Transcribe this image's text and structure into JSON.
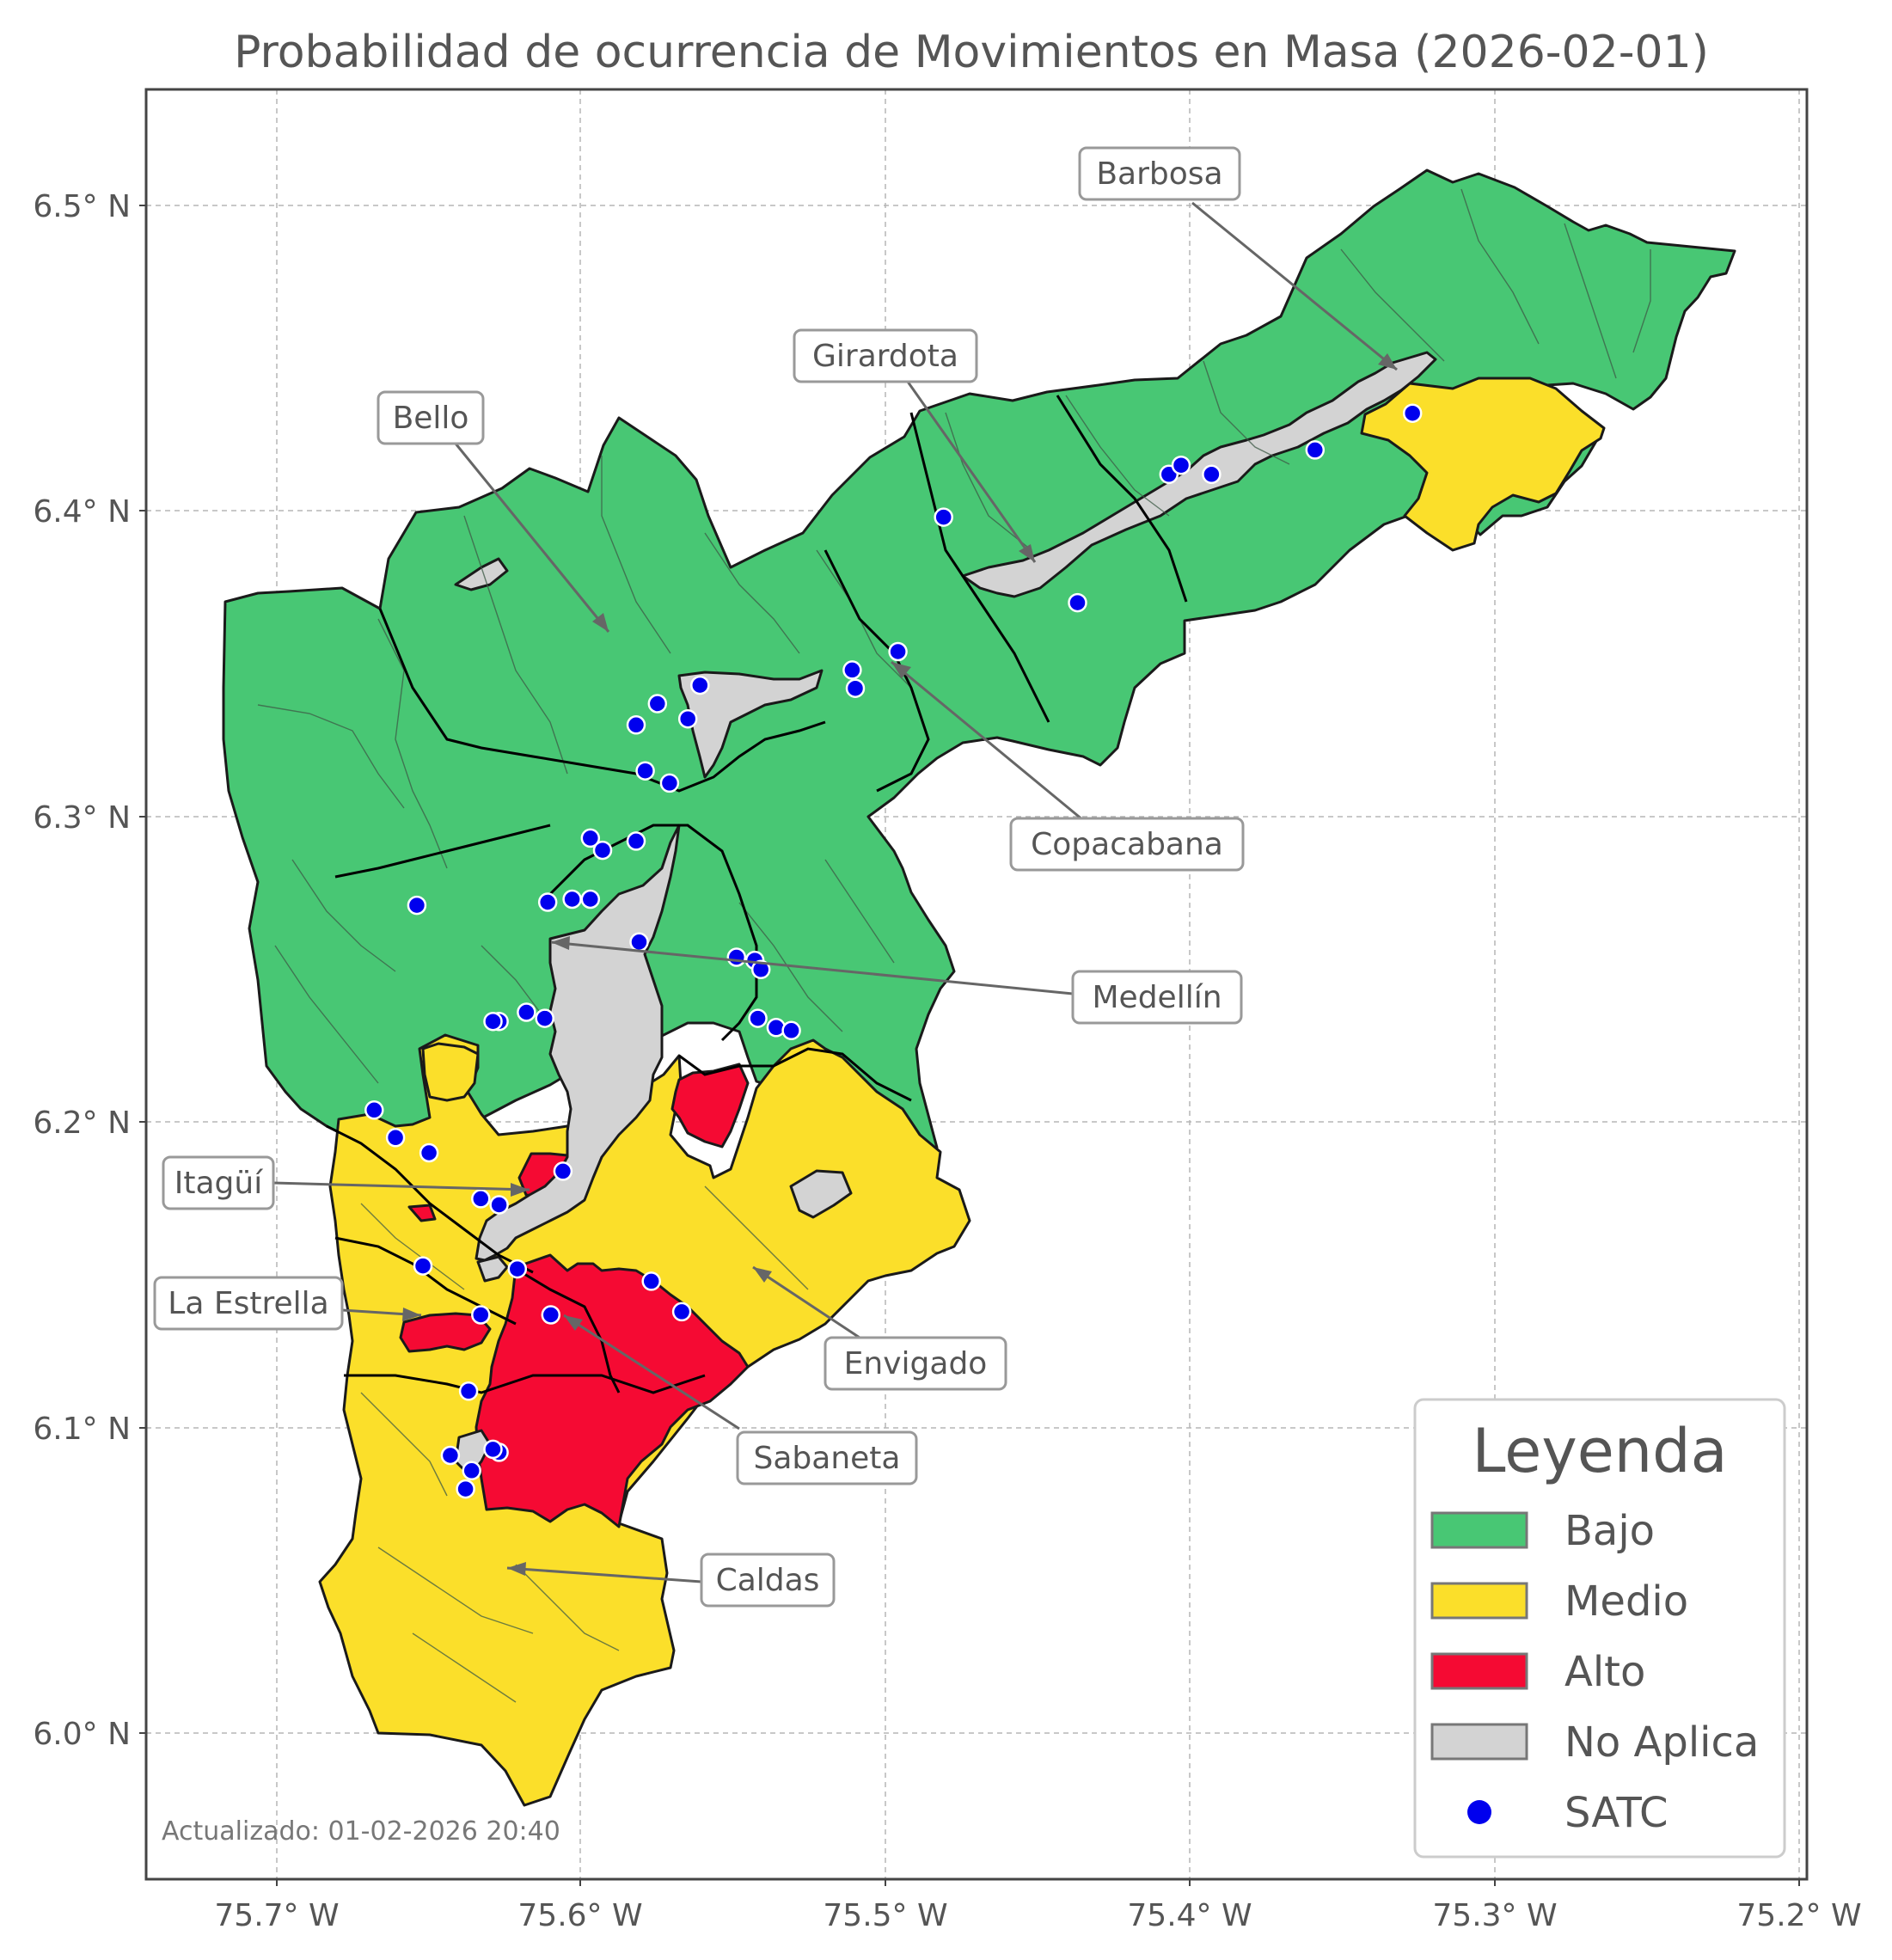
{
  "title": "Probabilidad de ocurrencia de Movimientos en Masa (2026-02-01)",
  "axes": {
    "x_ticks": [
      "75.7° W",
      "75.6° W",
      "75.5° W",
      "75.4° W",
      "75.3° W",
      "75.2° W"
    ],
    "y_ticks": [
      "6.5° N",
      "6.4° N",
      "6.3° N",
      "6.2° N",
      "6.1° N",
      "6.0° N"
    ],
    "grid": true,
    "lon_range": [
      -75.745,
      -75.195
    ],
    "lat_range": [
      5.955,
      6.535
    ]
  },
  "colors": {
    "bajo": "#48c774",
    "medio": "#fbdf2a",
    "alto": "#f50a33",
    "no_aplica": "#d3d3d3",
    "satc": "#0000ee"
  },
  "municipalities": [
    {
      "name": "Barbosa"
    },
    {
      "name": "Girardota"
    },
    {
      "name": "Bello"
    },
    {
      "name": "Copacabana"
    },
    {
      "name": "Medellín"
    },
    {
      "name": "Itagüí"
    },
    {
      "name": "La Estrella"
    },
    {
      "name": "Envigado"
    },
    {
      "name": "Sabaneta"
    },
    {
      "name": "Caldas"
    }
  ],
  "legend": {
    "title": "Leyenda",
    "items": [
      {
        "label": "Bajo",
        "type": "patch",
        "color_key": "bajo"
      },
      {
        "label": "Medio",
        "type": "patch",
        "color_key": "medio"
      },
      {
        "label": "Alto",
        "type": "patch",
        "color_key": "alto"
      },
      {
        "label": "No Aplica",
        "type": "patch",
        "color_key": "no_aplica"
      },
      {
        "label": "SATC",
        "type": "marker",
        "color_key": "satc"
      }
    ]
  },
  "updated": "Actualizado: 01-02-2026 20:40",
  "satc_stations": [
    [
      -75.327,
      6.432
    ],
    [
      -75.359,
      6.42
    ],
    [
      -75.393,
      6.412
    ],
    [
      -75.407,
      6.412
    ],
    [
      -75.403,
      6.415
    ],
    [
      -75.481,
      6.398
    ],
    [
      -75.437,
      6.37
    ],
    [
      -75.496,
      6.354
    ],
    [
      -75.511,
      6.348
    ],
    [
      -75.51,
      6.342
    ],
    [
      -75.561,
      6.343
    ],
    [
      -75.565,
      6.332
    ],
    [
      -75.575,
      6.337
    ],
    [
      -75.582,
      6.33
    ],
    [
      -75.579,
      6.315
    ],
    [
      -75.571,
      6.311
    ],
    [
      -75.597,
      6.293
    ],
    [
      -75.593,
      6.289
    ],
    [
      -75.582,
      6.292
    ],
    [
      -75.611,
      6.272
    ],
    [
      -75.603,
      6.273
    ],
    [
      -75.597,
      6.273
    ],
    [
      -75.654,
      6.271
    ],
    [
      -75.581,
      6.259
    ],
    [
      -75.549,
      6.254
    ],
    [
      -75.543,
      6.253
    ],
    [
      -75.541,
      6.25
    ],
    [
      -75.542,
      6.234
    ],
    [
      -75.536,
      6.231
    ],
    [
      -75.531,
      6.23
    ],
    [
      -75.618,
      6.236
    ],
    [
      -75.612,
      6.234
    ],
    [
      -75.627,
      6.233
    ],
    [
      -75.629,
      6.233
    ],
    [
      -75.668,
      6.204
    ],
    [
      -75.661,
      6.195
    ],
    [
      -75.65,
      6.19
    ],
    [
      -75.606,
      6.184
    ],
    [
      -75.633,
      6.175
    ],
    [
      -75.627,
      6.173
    ],
    [
      -75.652,
      6.153
    ],
    [
      -75.621,
      6.152
    ],
    [
      -75.577,
      6.148
    ],
    [
      -75.567,
      6.138
    ],
    [
      -75.633,
      6.137
    ],
    [
      -75.61,
      6.137
    ],
    [
      -75.637,
      6.112
    ],
    [
      -75.627,
      6.092
    ],
    [
      -75.629,
      6.093
    ],
    [
      -75.643,
      6.091
    ],
    [
      -75.636,
      6.086
    ],
    [
      -75.638,
      6.08
    ]
  ]
}
